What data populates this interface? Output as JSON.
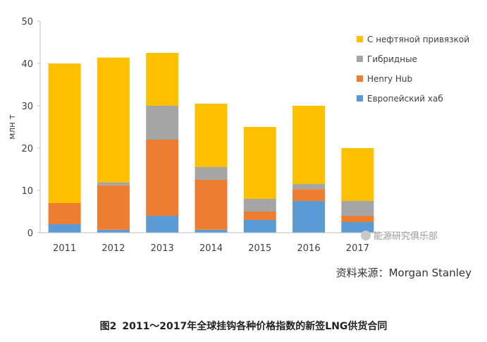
{
  "chart_data": {
    "type": "bar",
    "stacked": true,
    "categories": [
      "2011",
      "2012",
      "2013",
      "2014",
      "2015",
      "2016",
      "2017"
    ],
    "series": [
      {
        "name": "Европейский хаб",
        "color": "#5b9bd5",
        "values": [
          2,
          0.7,
          4,
          0.7,
          3,
          7.5,
          2.5
        ]
      },
      {
        "name": "Henry Hub",
        "color": "#ed7d31",
        "values": [
          5,
          10.5,
          18,
          11.8,
          2,
          2.8,
          1.5
        ]
      },
      {
        "name": "Гибридные",
        "color": "#a5a5a5",
        "values": [
          0,
          0.7,
          8,
          3,
          3,
          1.2,
          3.5
        ]
      },
      {
        "name": "С нефтяной привязкой",
        "color": "#ffc000",
        "values": [
          33,
          29.5,
          12.5,
          15,
          17,
          18.5,
          12.5
        ]
      }
    ],
    "ylabel": "млн т",
    "ylim": [
      0,
      50
    ],
    "yticks": [
      0,
      10,
      20,
      30,
      40,
      50
    ],
    "grid": false,
    "legend": "right"
  },
  "source_text": "资料来源：Morgan Stanley",
  "watermark_text": "能源研究俱乐部",
  "caption": {
    "label": "图2",
    "text": "2011～2017年全球挂钩各种价格指数的新签LNG供货合同"
  }
}
